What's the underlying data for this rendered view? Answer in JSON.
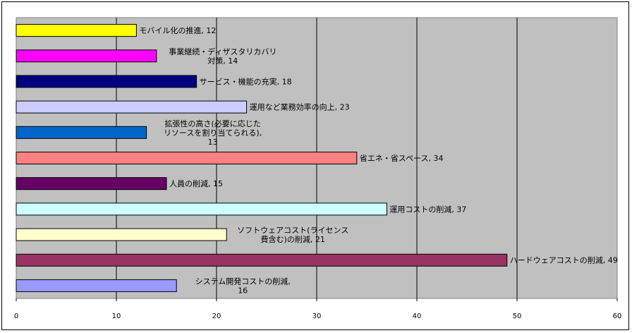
{
  "chart_data": {
    "type": "bar",
    "orientation": "horizontal",
    "categories": [
      [
        "モバイル化の推進, 12"
      ],
      [
        "事業継続・ディザスタリカバリ",
        "対策, 14"
      ],
      [
        "サービス・機能の充実, 18"
      ],
      [
        "運用など業務効率の向上, 23"
      ],
      [
        "拡張性の高さ(必要に応じた",
        "リソースを割り当てられる),",
        "13"
      ],
      [
        "省エネ・省スペース, 34"
      ],
      [
        "人員の削減, 15"
      ],
      [
        "運用コストの削減, 37"
      ],
      [
        "ソフトウェアコスト(ライセンス",
        "費含む)の削減, 21"
      ],
      [
        "ハードウェアコストの削減, 49"
      ],
      [
        "システム開発コストの削減,",
        "16"
      ]
    ],
    "values": [
      12,
      14,
      18,
      23,
      13,
      34,
      15,
      37,
      21,
      49,
      16
    ],
    "colors": [
      "#ffff00",
      "#ff00ff",
      "#000080",
      "#ccccff",
      "#0066cc",
      "#ff8080",
      "#660066",
      "#ccffff",
      "#ffffcc",
      "#993366",
      "#9999ff"
    ],
    "xlim": [
      0,
      60
    ],
    "xticks": [
      "0",
      "10",
      "20",
      "30",
      "40",
      "50",
      "60"
    ],
    "grid": true,
    "plot_background": "#c0c0c0",
    "legend": "none"
  }
}
